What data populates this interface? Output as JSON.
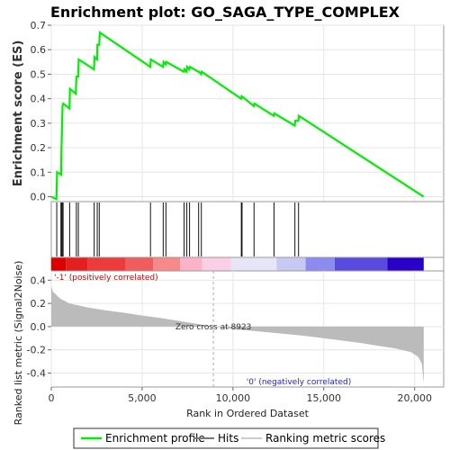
{
  "chart_data": {
    "type": "line",
    "title": "Enrichment plot: GO_SAGA_TYPE_COMPLEX",
    "es_panel": {
      "ylabel": "Enrichment score (ES)",
      "ylim": [
        -0.02,
        0.7
      ],
      "yticks": [
        0.0,
        0.1,
        0.2,
        0.3,
        0.4,
        0.5,
        0.6,
        0.7
      ],
      "ytick_labels": [
        "0.0",
        "0.1",
        "0.2",
        "0.3",
        "0.4",
        "0.5",
        "0.6",
        "0.7"
      ],
      "color": "#00ee00",
      "points": [
        [
          0,
          0.0
        ],
        [
          280,
          -0.01
        ],
        [
          320,
          0.1
        ],
        [
          540,
          0.09
        ],
        [
          560,
          0.19
        ],
        [
          590,
          0.29
        ],
        [
          620,
          0.37
        ],
        [
          660,
          0.38
        ],
        [
          1000,
          0.36
        ],
        [
          1030,
          0.44
        ],
        [
          1350,
          0.42
        ],
        [
          1380,
          0.49
        ],
        [
          1480,
          0.49
        ],
        [
          1510,
          0.56
        ],
        [
          2350,
          0.52
        ],
        [
          2380,
          0.57
        ],
        [
          2520,
          0.56
        ],
        [
          2540,
          0.62
        ],
        [
          2640,
          0.62
        ],
        [
          2670,
          0.67
        ],
        [
          5450,
          0.53
        ],
        [
          5480,
          0.56
        ],
        [
          6150,
          0.53
        ],
        [
          6180,
          0.55
        ],
        [
          6300,
          0.54
        ],
        [
          6330,
          0.55
        ],
        [
          7300,
          0.51
        ],
        [
          7330,
          0.52
        ],
        [
          7450,
          0.51
        ],
        [
          7480,
          0.53
        ],
        [
          7600,
          0.52
        ],
        [
          7630,
          0.53
        ],
        [
          8100,
          0.51
        ],
        [
          8130,
          0.51
        ],
        [
          8250,
          0.5
        ],
        [
          8280,
          0.51
        ],
        [
          10450,
          0.4
        ],
        [
          10480,
          0.41
        ],
        [
          11150,
          0.37
        ],
        [
          11180,
          0.38
        ],
        [
          12250,
          0.33
        ],
        [
          12280,
          0.34
        ],
        [
          13400,
          0.29
        ],
        [
          13430,
          0.31
        ],
        [
          13600,
          0.31
        ],
        [
          13630,
          0.33
        ],
        [
          20500,
          0.0
        ]
      ]
    },
    "hits": {
      "positions": [
        300,
        530,
        560,
        600,
        650,
        1010,
        1380,
        1490,
        2360,
        2530,
        2640,
        5460,
        6160,
        6310,
        7310,
        7460,
        7610,
        8110,
        8260,
        10460,
        10500,
        11160,
        12260,
        13410,
        13610
      ]
    },
    "rank_panel": {
      "ylabel": "Ranked list metric (Signal2Noise)",
      "ylim": [
        -0.52,
        0.48
      ],
      "yticks": [
        -0.4,
        -0.2,
        0.0,
        0.2,
        0.4
      ],
      "ytick_labels": [
        "-0.4",
        "-0.2",
        "0.0",
        "0.2",
        "0.4"
      ],
      "metric_curve": [
        [
          0,
          0.35
        ],
        [
          100,
          0.3
        ],
        [
          500,
          0.24
        ],
        [
          1000,
          0.2
        ],
        [
          2000,
          0.165
        ],
        [
          3000,
          0.14
        ],
        [
          4000,
          0.12
        ],
        [
          5000,
          0.095
        ],
        [
          6000,
          0.075
        ],
        [
          7000,
          0.05
        ],
        [
          8000,
          0.025
        ],
        [
          8923,
          0.0
        ],
        [
          10000,
          -0.02
        ],
        [
          11000,
          -0.035
        ],
        [
          12000,
          -0.05
        ],
        [
          13000,
          -0.065
        ],
        [
          14000,
          -0.08
        ],
        [
          15000,
          -0.1
        ],
        [
          16000,
          -0.12
        ],
        [
          17000,
          -0.14
        ],
        [
          18000,
          -0.165
        ],
        [
          19000,
          -0.19
        ],
        [
          19800,
          -0.22
        ],
        [
          20200,
          -0.26
        ],
        [
          20400,
          -0.32
        ],
        [
          20500,
          -0.5
        ]
      ],
      "zero_cross_label": "Zero cross at 8923",
      "zero_cross": 8923,
      "pos_label": "'-1' (positively correlated)",
      "neg_label": "'0' (negatively correlated)"
    },
    "x_axis": {
      "xlabel": "Rank in Ordered Dataset",
      "xlim": [
        0,
        21600
      ],
      "xticks": [
        0,
        5000,
        10000,
        15000,
        20000
      ],
      "xtick_labels": [
        "0",
        "5,000",
        "10,000",
        "15,000",
        "20,000"
      ],
      "max_rank": 20500
    },
    "heat_bar": {
      "segments": [
        {
          "start": 0,
          "end": 800,
          "color": "#dd0000"
        },
        {
          "start": 800,
          "end": 2000,
          "color": "#e51f1f"
        },
        {
          "start": 2000,
          "end": 4100,
          "color": "#ed3a3a"
        },
        {
          "start": 4100,
          "end": 5600,
          "color": "#f15c5c"
        },
        {
          "start": 5600,
          "end": 7100,
          "color": "#f68989"
        },
        {
          "start": 7100,
          "end": 8300,
          "color": "#fab3c8"
        },
        {
          "start": 8300,
          "end": 9900,
          "color": "#fbd0e6"
        },
        {
          "start": 9900,
          "end": 12400,
          "color": "#e6e6f8"
        },
        {
          "start": 12400,
          "end": 14000,
          "color": "#c8c8f4"
        },
        {
          "start": 14000,
          "end": 15600,
          "color": "#8c8cf0"
        },
        {
          "start": 15600,
          "end": 18500,
          "color": "#5a4be0"
        },
        {
          "start": 18500,
          "end": 20500,
          "color": "#2a00c8"
        }
      ]
    },
    "legend": [
      {
        "label": "Enrichment profile",
        "color": "#00ee00",
        "kind": "line"
      },
      {
        "label": "Hits",
        "color": "#777777",
        "kind": "line"
      },
      {
        "label": "Ranking metric scores",
        "color": "#cccccc",
        "kind": "line"
      }
    ]
  }
}
